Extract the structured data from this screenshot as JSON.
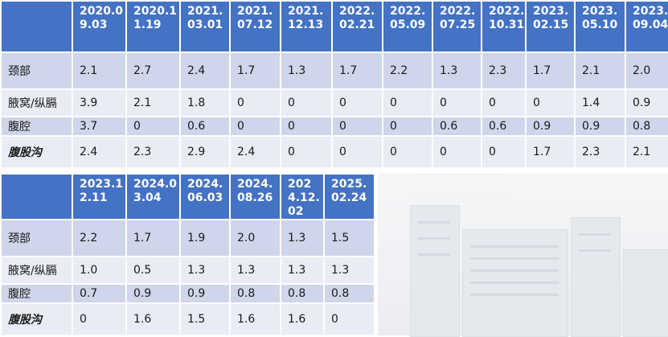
{
  "table1": {
    "headers": [
      "",
      "2020.09.03",
      "2020.11.19",
      "2021.03.01",
      "2021.07.12",
      "2021.12.13",
      "2022.02.21",
      "2022.05.09",
      "2022.07.25",
      "2022.10.31",
      "2023.02.15",
      "2023.05.10",
      "2023.09.04"
    ],
    "rows": [
      {
        "label": "颈部",
        "values": [
          "2.1",
          "2.7",
          "2.4",
          "1.7",
          "1.3",
          "1.7",
          "2.2",
          "1.3",
          "2.3",
          "1.7",
          "2.1",
          "2.0"
        ]
      },
      {
        "label": "腋窝/纵膈",
        "values": [
          "3.9",
          "2.1",
          "1.8",
          "0",
          "0",
          "0",
          "0",
          "0",
          "0",
          "0",
          "1.4",
          "0.9"
        ]
      },
      {
        "label": "腹腔",
        "values": [
          "3.7",
          "0",
          "0.6",
          "0",
          "0",
          "0",
          "0",
          "0.6",
          "0.6",
          "0.9",
          "0.9",
          "0.8"
        ]
      },
      {
        "label": "腹股沟",
        "values": [
          "2.4",
          "2.3",
          "2.9",
          "2.4",
          "0",
          "0",
          "0",
          "0",
          "0",
          "1.7",
          "2.3",
          "2.1"
        ]
      }
    ]
  },
  "table2": {
    "headers": [
      "",
      "2023.12.11",
      "2024.03.04",
      "2024.06.03",
      "2024.08.26",
      "2024.12.02",
      "2025.02.24"
    ],
    "rows": [
      {
        "label": "颈部",
        "values": [
          "2.2",
          "1.7",
          "1.9",
          "2.0",
          "1.3",
          "1.5"
        ]
      },
      {
        "label": "腋窝/纵膈",
        "values": [
          "1.0",
          "0.5",
          "1.3",
          "1.3",
          "1.3",
          "1.3"
        ]
      },
      {
        "label": "腹腔",
        "values": [
          "0.7",
          "0.9",
          "0.9",
          "0.8",
          "0.8",
          "0.8"
        ]
      },
      {
        "label": "腹股沟",
        "values": [
          "0",
          "1.6",
          "1.5",
          "1.6",
          "1.6",
          "0"
        ]
      }
    ]
  },
  "colors": {
    "header": "#4472c4",
    "row_dark": "#cfd5ea",
    "row_light": "#e9ebf5"
  }
}
